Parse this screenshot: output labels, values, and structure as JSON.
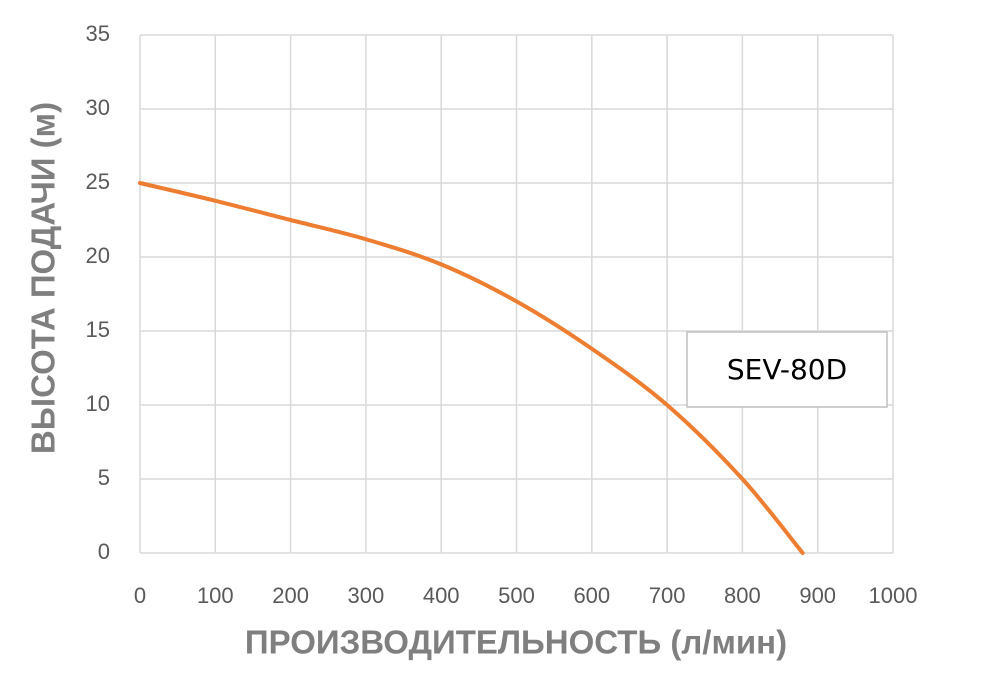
{
  "chart_data": {
    "type": "line",
    "x_label": "ПРОИЗВОДИТЕЛЬНОСТЬ (л/мин)",
    "y_label": "ВЫСОТА ПОДАЧИ (м)",
    "x": [
      0,
      100,
      200,
      300,
      400,
      500,
      600,
      700,
      800,
      880
    ],
    "series": [
      {
        "name": "SEV-80D",
        "color": "#ed7d31",
        "values": [
          25,
          23.8,
          22.5,
          21.2,
          19.5,
          17,
          13.8,
          10,
          5,
          0
        ]
      }
    ],
    "xlim": [
      0,
      1000
    ],
    "xticks": [
      0,
      100,
      200,
      300,
      400,
      500,
      600,
      700,
      800,
      900,
      1000
    ],
    "ylim": [
      0,
      35
    ],
    "yticks": [
      0,
      5,
      10,
      15,
      20,
      25,
      30,
      35
    ],
    "grid": true,
    "legend": "right"
  }
}
